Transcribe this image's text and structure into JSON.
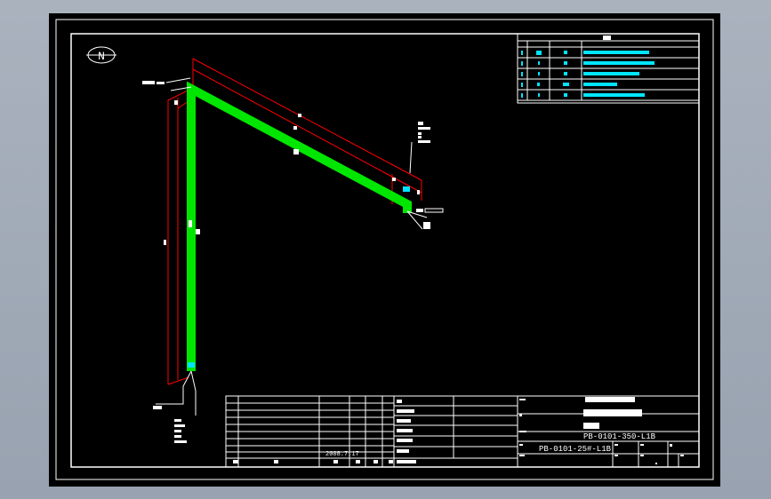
{
  "drawing": {
    "north_symbol": "N",
    "colors": {
      "background": "#000000",
      "pipe": "#00e600",
      "dimension": "#ff0000",
      "table_text": "#00e5ff",
      "lines": "#ffffff",
      "frame": "#a0a8b4"
    },
    "title_block": {
      "drawing_number_1": "PB-0101-25#-L1B",
      "drawing_number_2": "PB-0101-350-L1B",
      "date": "2008.7.17"
    },
    "material_table": {
      "rows": 5
    }
  }
}
